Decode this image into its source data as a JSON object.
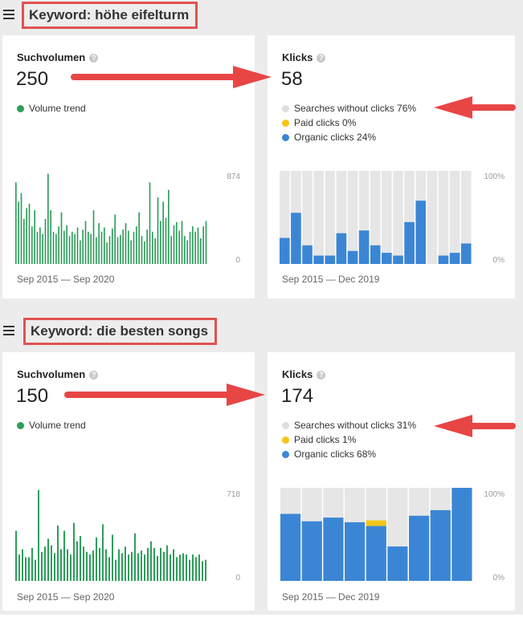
{
  "colors": {
    "volume_green": "#2e9e5b",
    "gray_bar": "#e6e6e6",
    "paid_yellow": "#f5c518",
    "organic_blue": "#3b86d4",
    "annotation_red": "#e84545"
  },
  "sections": [
    {
      "keyword_label": "Keyword: höhe eifelturm",
      "volume": {
        "title": "Suchvolumen",
        "value": "250",
        "legend": "Volume trend",
        "axis_max": "874",
        "axis_min": "0",
        "range": "Sep 2015 — Sep 2020"
      },
      "clicks": {
        "title": "Klicks",
        "value": "58",
        "legend": [
          "Searches without clicks 76%",
          "Paid clicks 0%",
          "Organic clicks 24%"
        ],
        "axis_max": "100%",
        "axis_min": "0%",
        "range": "Sep 2015 — Dec 2019"
      }
    },
    {
      "keyword_label": "Keyword: die besten songs",
      "volume": {
        "title": "Suchvolumen",
        "value": "150",
        "legend": "Volume trend",
        "axis_max": "718",
        "axis_min": "0",
        "range": "Sep 2015 — Sep 2020"
      },
      "clicks": {
        "title": "Klicks",
        "value": "174",
        "legend": [
          "Searches without clicks 31%",
          "Paid clicks 1%",
          "Organic clicks 68%"
        ],
        "axis_max": "100%",
        "axis_min": "0%",
        "range": "Sep 2015 — Dec 2019"
      }
    }
  ],
  "chart_data": [
    {
      "type": "bar",
      "title": "Volume trend",
      "ylim": [
        0,
        874
      ],
      "values": [
        760,
        580,
        660,
        420,
        520,
        560,
        350,
        500,
        300,
        340,
        280,
        420,
        840,
        500,
        300,
        280,
        350,
        480,
        310,
        360,
        260,
        300,
        280,
        340,
        220,
        320,
        400,
        300,
        280,
        500,
        250,
        380,
        300,
        340,
        200,
        260,
        330,
        460,
        250,
        270,
        320,
        380,
        310,
        220,
        300,
        350,
        480,
        260,
        210,
        320,
        760,
        300,
        240,
        620,
        400,
        580,
        430,
        690,
        260,
        360,
        390,
        310,
        400,
        260,
        220,
        300,
        350,
        300,
        340,
        240,
        350,
        400
      ]
    },
    {
      "type": "bar",
      "title": "Klicks",
      "ylim": [
        0,
        100
      ],
      "stacked": true,
      "series": [
        {
          "name": "Organic clicks",
          "values": [
            28,
            55,
            20,
            9,
            9,
            33,
            14,
            36,
            20,
            12,
            9,
            45,
            68,
            0,
            9,
            12,
            22
          ]
        },
        {
          "name": "Paid clicks",
          "values": [
            0,
            0,
            0,
            0,
            0,
            0,
            0,
            0,
            0,
            0,
            0,
            0,
            0,
            0,
            0,
            0,
            0
          ]
        }
      ]
    },
    {
      "type": "bar",
      "title": "Volume trend",
      "ylim": [
        0,
        718
      ],
      "values": [
        380,
        200,
        240,
        180,
        180,
        250,
        160,
        690,
        220,
        260,
        320,
        270,
        210,
        420,
        240,
        380,
        240,
        200,
        440,
        300,
        340,
        260,
        220,
        200,
        230,
        330,
        250,
        430,
        240,
        180,
        350,
        160,
        240,
        210,
        260,
        200,
        220,
        360,
        210,
        230,
        200,
        250,
        300,
        250,
        190,
        250,
        220,
        270,
        200,
        240,
        180,
        200,
        210,
        200,
        160,
        200,
        180,
        200,
        150,
        160
      ]
    },
    {
      "type": "bar",
      "title": "Klicks",
      "ylim": [
        0,
        100
      ],
      "stacked": true,
      "series": [
        {
          "name": "Organic clicks",
          "values": [
            72,
            64,
            68,
            63,
            59,
            37,
            70,
            76,
            100
          ]
        },
        {
          "name": "Paid clicks",
          "values": [
            0,
            0,
            0,
            0,
            6,
            0,
            0,
            0,
            0
          ]
        }
      ]
    }
  ]
}
